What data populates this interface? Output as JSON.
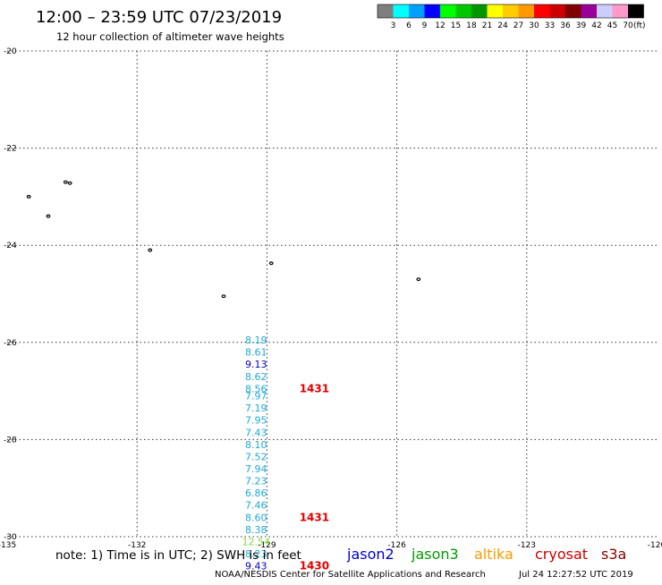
{
  "header": {
    "title": "12:00 – 23:59 UTC 07/23/2019",
    "subtitle": "12 hour collection of altimeter wave heights"
  },
  "legend": {
    "swatches": [
      {
        "color": "#7f7f7f"
      },
      {
        "color": "#00ffff"
      },
      {
        "color": "#00a0ff"
      },
      {
        "color": "#0000ff"
      },
      {
        "color": "#00ff00"
      },
      {
        "color": "#00c800"
      },
      {
        "color": "#009600"
      },
      {
        "color": "#ffff00"
      },
      {
        "color": "#ffcc00"
      },
      {
        "color": "#ff9900"
      },
      {
        "color": "#ff0000"
      },
      {
        "color": "#cc0000"
      },
      {
        "color": "#800000"
      },
      {
        "color": "#990099"
      },
      {
        "color": "#ccccff"
      },
      {
        "color": "#ff99cc"
      },
      {
        "color": "#000000"
      }
    ],
    "ticks": [
      "3",
      "6",
      "9",
      "12",
      "15",
      "18",
      "21",
      "24",
      "27",
      "30",
      "33",
      "36",
      "39",
      "42",
      "45",
      "70"
    ],
    "unit": "(ft)"
  },
  "map": {
    "lon_range": [
      -135,
      -120
    ],
    "lat_range": [
      -30,
      -20
    ],
    "x_ticks": [
      {
        "value": -135,
        "label": "-135"
      },
      {
        "value": -132,
        "label": "-132"
      },
      {
        "value": -129,
        "label": "-129"
      },
      {
        "value": -126,
        "label": "-126"
      },
      {
        "value": -123,
        "label": "-123"
      },
      {
        "value": -120,
        "label": "-120"
      }
    ],
    "y_ticks": [
      {
        "value": -20,
        "label": "-20"
      },
      {
        "value": -22,
        "label": "-22"
      },
      {
        "value": -24,
        "label": "-24"
      },
      {
        "value": -26,
        "label": "-26"
      },
      {
        "value": -28,
        "label": "-28"
      },
      {
        "value": -30,
        "label": "-30"
      }
    ],
    "islands": [
      {
        "lon": -134.5,
        "lat": -23.0
      },
      {
        "lon": -134.05,
        "lat": -23.4
      },
      {
        "lon": -133.65,
        "lat": -22.7
      },
      {
        "lon": -133.55,
        "lat": -22.72
      },
      {
        "lon": -131.7,
        "lat": -24.1
      },
      {
        "lon": -130.0,
        "lat": -25.05
      },
      {
        "lon": -128.9,
        "lat": -24.37
      },
      {
        "lon": -125.5,
        "lat": -24.7
      }
    ],
    "wave_heights": [
      {
        "lat": -25.95,
        "text": "8.19",
        "sat": "cryosat",
        "color": "#1fa8d8"
      },
      {
        "lat": -26.2,
        "text": "8.61",
        "sat": "cryosat",
        "color": "#1fa8d8"
      },
      {
        "lat": -26.45,
        "text": "9.13",
        "sat": "jason2",
        "color": "#0000c0"
      },
      {
        "lat": -26.7,
        "text": "8.62",
        "sat": "cryosat",
        "color": "#1fa8d8"
      },
      {
        "lat": -26.95,
        "text": "8.56",
        "sat": "cryosat",
        "color": "#1fa8d8"
      },
      {
        "lat": -27.1,
        "text": "7.97",
        "sat": "cryosat",
        "color": "#1fa8d8"
      },
      {
        "lat": -27.35,
        "text": "7.19",
        "sat": "cryosat",
        "color": "#1fa8d8"
      },
      {
        "lat": -27.6,
        "text": "7.95",
        "sat": "cryosat",
        "color": "#1fa8d8"
      },
      {
        "lat": -27.85,
        "text": "7.43",
        "sat": "cryosat",
        "color": "#1fa8d8"
      },
      {
        "lat": -28.1,
        "text": "8.10",
        "sat": "cryosat",
        "color": "#1fa8d8"
      },
      {
        "lat": -28.35,
        "text": "7.52",
        "sat": "cryosat",
        "color": "#1fa8d8"
      },
      {
        "lat": -28.6,
        "text": "7.94",
        "sat": "cryosat",
        "color": "#1fa8d8"
      },
      {
        "lat": -28.85,
        "text": "7.23",
        "sat": "cryosat",
        "color": "#1fa8d8"
      },
      {
        "lat": -29.1,
        "text": "6.86",
        "sat": "cryosat",
        "color": "#1fa8d8"
      },
      {
        "lat": -29.35,
        "text": "7.46",
        "sat": "cryosat",
        "color": "#1fa8d8"
      },
      {
        "lat": -29.6,
        "text": "8.60",
        "sat": "cryosat",
        "color": "#1fa8d8"
      },
      {
        "lat": -29.85,
        "text": "8.38",
        "sat": "cryosat",
        "color": "#1fa8d8"
      },
      {
        "lat": -30.1,
        "text": "12.54",
        "sat": "jason3",
        "color": "#7fdc3c"
      },
      {
        "lat": -30.35,
        "text": "8.23",
        "sat": "cryosat",
        "color": "#1fa8d8"
      },
      {
        "lat": -30.6,
        "text": "9.43",
        "sat": "jason2",
        "color": "#0000c0"
      }
    ],
    "time_labels": [
      {
        "lat": -26.95,
        "text": "1431"
      },
      {
        "lat": -29.6,
        "text": "1431"
      },
      {
        "lat": -30.6,
        "text": "1430"
      }
    ]
  },
  "footer": {
    "note": "note:  1) Time is in UTC;  2) SWH is in feet",
    "satellites": [
      {
        "name": "jason2",
        "color": "#0000cc"
      },
      {
        "name": "jason3",
        "color": "#009900"
      },
      {
        "name": "altika",
        "color": "#ff9900"
      },
      {
        "name": "cryosat",
        "color": "#cc0000"
      },
      {
        "name": "s3a",
        "color": "#800000"
      }
    ],
    "credit": "NOAA/NESDIS Center for Satellite Applications and Research",
    "timestamp": "Jul 24 12:27:52 UTC 2019"
  }
}
